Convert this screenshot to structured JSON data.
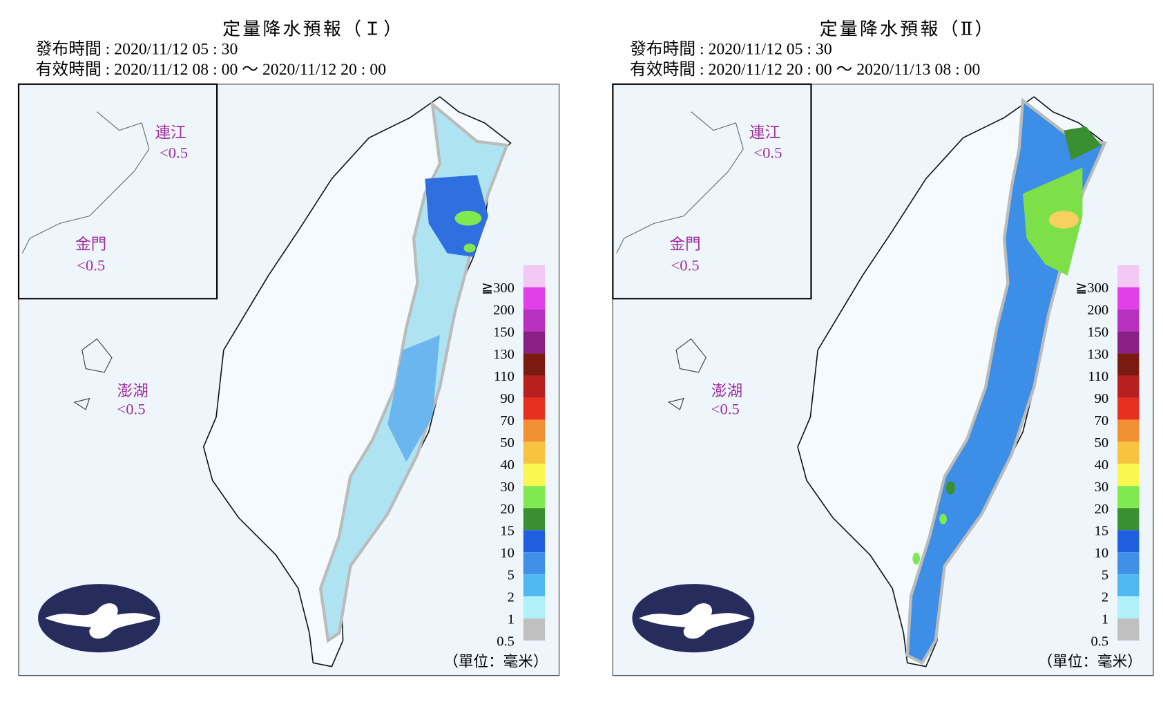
{
  "panels": [
    {
      "title": "定量降水預報（Ｉ）",
      "issued": "發布時間 : 2020/11/12 05 : 30",
      "valid": "有效時間 : 2020/11/12 08 : 00 ～ 2020/11/12 20 : 00",
      "areas": [
        {
          "name": "連江",
          "value": "<0.5"
        },
        {
          "name": "金門",
          "value": "<0.5"
        },
        {
          "name": "澎湖",
          "value": "<0.5"
        }
      ],
      "legend": {
        "labels": [
          "≧300",
          "200",
          "150",
          "130",
          "110",
          "90",
          "70",
          "50",
          "40",
          "30",
          "20",
          "15",
          "10",
          "5",
          "2",
          "1",
          "0.5"
        ],
        "colors": [
          "#f4c8f4",
          "#e040e8",
          "#b830c0",
          "#8a2085",
          "#7a1a10",
          "#b82020",
          "#e83020",
          "#f09030",
          "#f8c440",
          "#f8f850",
          "#80e850",
          "#3a9030",
          "#2060e0",
          "#4090e8",
          "#50b8f0",
          "#b0f0f8",
          "#c0c0c0"
        ]
      },
      "unit": "（單位：毫米）"
    },
    {
      "title": "定量降水預報（Ⅱ）",
      "issued": "發布時間 : 2020/11/12 05 : 30",
      "valid": "有效時間 : 2020/11/12 20 : 00 ～ 2020/11/13 08 : 00",
      "areas": [
        {
          "name": "連江",
          "value": "<0.5"
        },
        {
          "name": "金門",
          "value": "<0.5"
        },
        {
          "name": "澎湖",
          "value": "<0.5"
        }
      ],
      "legend": {
        "labels": [
          "≧300",
          "200",
          "150",
          "130",
          "110",
          "90",
          "70",
          "50",
          "40",
          "30",
          "20",
          "15",
          "10",
          "5",
          "2",
          "1",
          "0.5"
        ],
        "colors": [
          "#f4c8f4",
          "#e040e8",
          "#b830c0",
          "#8a2085",
          "#7a1a10",
          "#b82020",
          "#e83020",
          "#f09030",
          "#f8c440",
          "#f8f850",
          "#80e850",
          "#3a9030",
          "#2060e0",
          "#4090e8",
          "#50b8f0",
          "#b0f0f8",
          "#c0c0c0"
        ]
      },
      "unit": "（單位：毫米）"
    }
  ]
}
